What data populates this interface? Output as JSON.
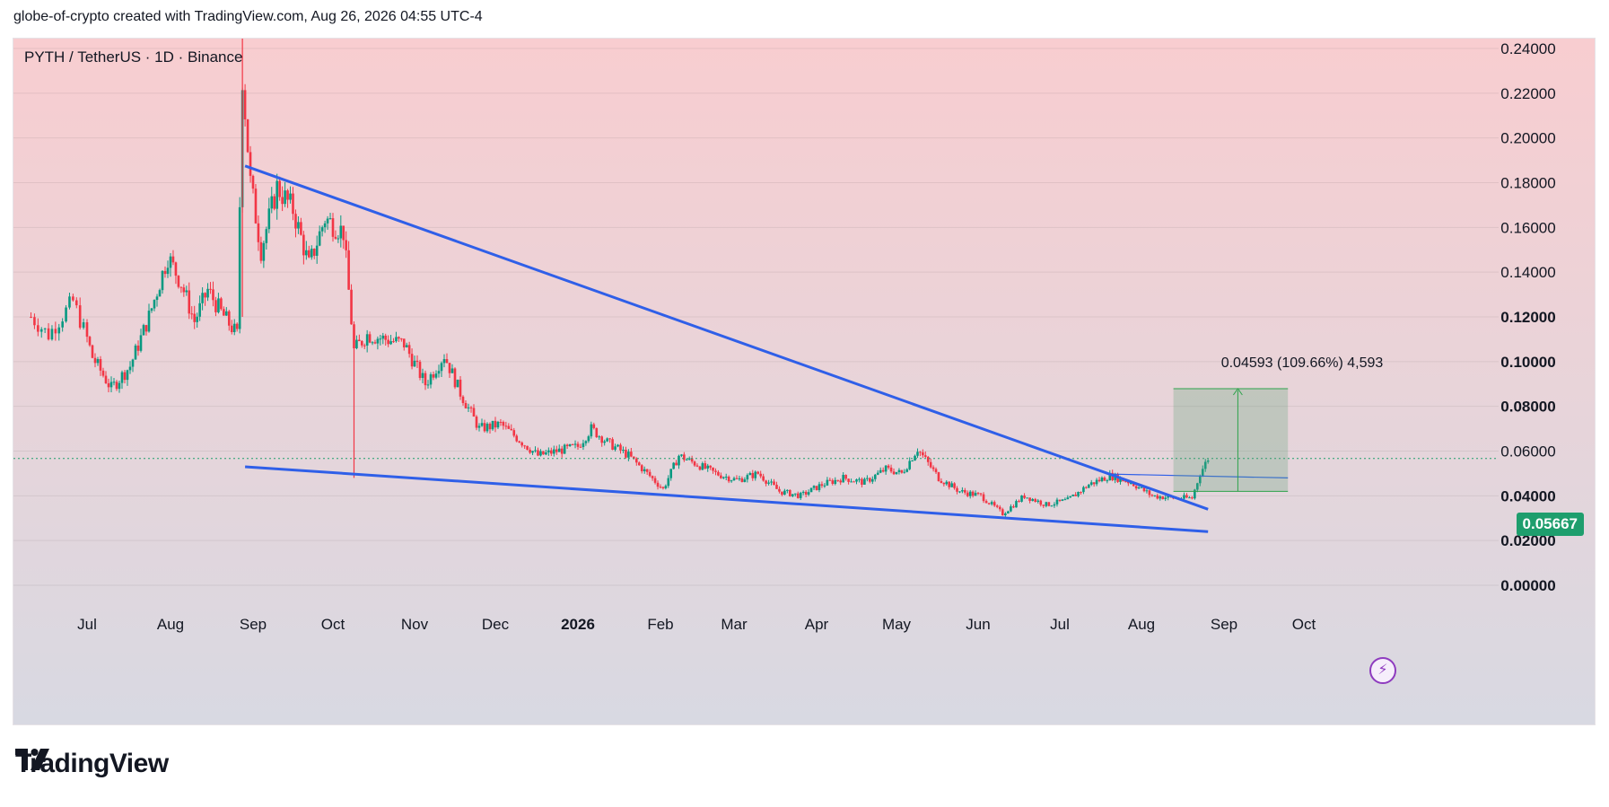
{
  "header": {
    "text": "globe-of-crypto created with TradingView.com, Aug 26, 2026 04:55 UTC-4"
  },
  "chart": {
    "symbol_label": "PYTH / TetherUS · 1D · Binance"
  },
  "price_tag": "0.05667",
  "measure_label": "0.04593 (109.66%) 4,593",
  "logo": {
    "text": "TradingView"
  },
  "icons": {
    "alert": "lightning-bolt-icon",
    "logo": "tradingview-logo-icon"
  },
  "colors": {
    "up": "#089981",
    "down": "#f23645",
    "trendline": "#2f5fe8",
    "price_tag": "#1e9e6d"
  },
  "chart_data": {
    "type": "candlestick",
    "ylim": [
      -0.005,
      0.245
    ],
    "y_ticks": [
      "0.24000",
      "0.22000",
      "0.20000",
      "0.18000",
      "0.16000",
      "0.14000",
      "0.12000",
      "0.10000",
      "0.08000",
      "0.06000",
      "0.04000",
      "0.02000",
      "0.00000"
    ],
    "x_ticks": [
      "Jul",
      "Aug",
      "Sep",
      "Oct",
      "Nov",
      "Dec",
      "2026",
      "Feb",
      "Mar",
      "Apr",
      "May",
      "Jun",
      "Jul",
      "Aug",
      "Sep",
      "Oct"
    ],
    "last_price": 0.05667,
    "close_path": [
      [
        "2025-06-15",
        0.12
      ],
      [
        "2025-06-20",
        0.112
      ],
      [
        "2025-06-27",
        0.127
      ],
      [
        "2025-07-03",
        0.102
      ],
      [
        "2025-07-10",
        0.088
      ],
      [
        "2025-07-17",
        0.098
      ],
      [
        "2025-07-24",
        0.12
      ],
      [
        "2025-07-31",
        0.147
      ],
      [
        "2025-08-05",
        0.135
      ],
      [
        "2025-08-10",
        0.118
      ],
      [
        "2025-08-15",
        0.132
      ],
      [
        "2025-08-20",
        0.122
      ],
      [
        "2025-08-26",
        0.112
      ],
      [
        "2025-08-28",
        0.228
      ],
      [
        "2025-08-31",
        0.18
      ],
      [
        "2025-09-04",
        0.15
      ],
      [
        "2025-09-10",
        0.178
      ],
      [
        "2025-09-16",
        0.168
      ],
      [
        "2025-09-22",
        0.143
      ],
      [
        "2025-09-28",
        0.164
      ],
      [
        "2025-10-05",
        0.158
      ],
      [
        "2025-10-09",
        0.105
      ],
      [
        "2025-10-14",
        0.112
      ],
      [
        "2025-10-21",
        0.11
      ],
      [
        "2025-10-28",
        0.108
      ],
      [
        "2025-11-05",
        0.09
      ],
      [
        "2025-11-12",
        0.103
      ],
      [
        "2025-11-18",
        0.086
      ],
      [
        "2025-11-25",
        0.07
      ],
      [
        "2025-12-03",
        0.072
      ],
      [
        "2025-12-10",
        0.065
      ],
      [
        "2025-12-17",
        0.058
      ],
      [
        "2025-12-24",
        0.06
      ],
      [
        "2026-01-01",
        0.062
      ],
      [
        "2026-01-06",
        0.07
      ],
      [
        "2026-01-12",
        0.064
      ],
      [
        "2026-01-20",
        0.058
      ],
      [
        "2026-01-27",
        0.05
      ],
      [
        "2026-02-02",
        0.043
      ],
      [
        "2026-02-08",
        0.058
      ],
      [
        "2026-02-15",
        0.054
      ],
      [
        "2026-02-22",
        0.05
      ],
      [
        "2026-03-02",
        0.047
      ],
      [
        "2026-03-10",
        0.05
      ],
      [
        "2026-03-18",
        0.042
      ],
      [
        "2026-03-26",
        0.04
      ],
      [
        "2026-04-03",
        0.045
      ],
      [
        "2026-04-11",
        0.048
      ],
      [
        "2026-04-19",
        0.046
      ],
      [
        "2026-04-27",
        0.052
      ],
      [
        "2026-05-03",
        0.05
      ],
      [
        "2026-05-09",
        0.061
      ],
      [
        "2026-05-17",
        0.048
      ],
      [
        "2026-05-25",
        0.042
      ],
      [
        "2026-06-02",
        0.04
      ],
      [
        "2026-06-10",
        0.032
      ],
      [
        "2026-06-18",
        0.04
      ],
      [
        "2026-06-26",
        0.036
      ],
      [
        "2026-07-04",
        0.038
      ],
      [
        "2026-07-12",
        0.045
      ],
      [
        "2026-07-20",
        0.049
      ],
      [
        "2026-07-28",
        0.046
      ],
      [
        "2026-08-05",
        0.04
      ],
      [
        "2026-08-13",
        0.039
      ],
      [
        "2026-08-20",
        0.039
      ],
      [
        "2026-08-23",
        0.05
      ],
      [
        "2026-08-26",
        0.05667
      ]
    ],
    "spikes": [
      [
        "2025-08-28",
        0.247
      ],
      [
        "2025-10-09",
        0.048
      ]
    ],
    "trendlines": [
      {
        "from": [
          "2025-08-29",
          0.1875
        ],
        "to": [
          "2026-08-26",
          0.034
        ]
      },
      {
        "from": [
          "2025-08-29",
          0.053
        ],
        "to": [
          "2026-08-26",
          0.024
        ]
      },
      {
        "from": [
          "2026-07-21",
          0.0497
        ],
        "to": [
          "2026-09-25",
          0.048
        ]
      }
    ],
    "measure": {
      "from_date": "2026-08-13",
      "to_date": "2026-09-25",
      "low": 0.042,
      "high": 0.0879
    }
  }
}
